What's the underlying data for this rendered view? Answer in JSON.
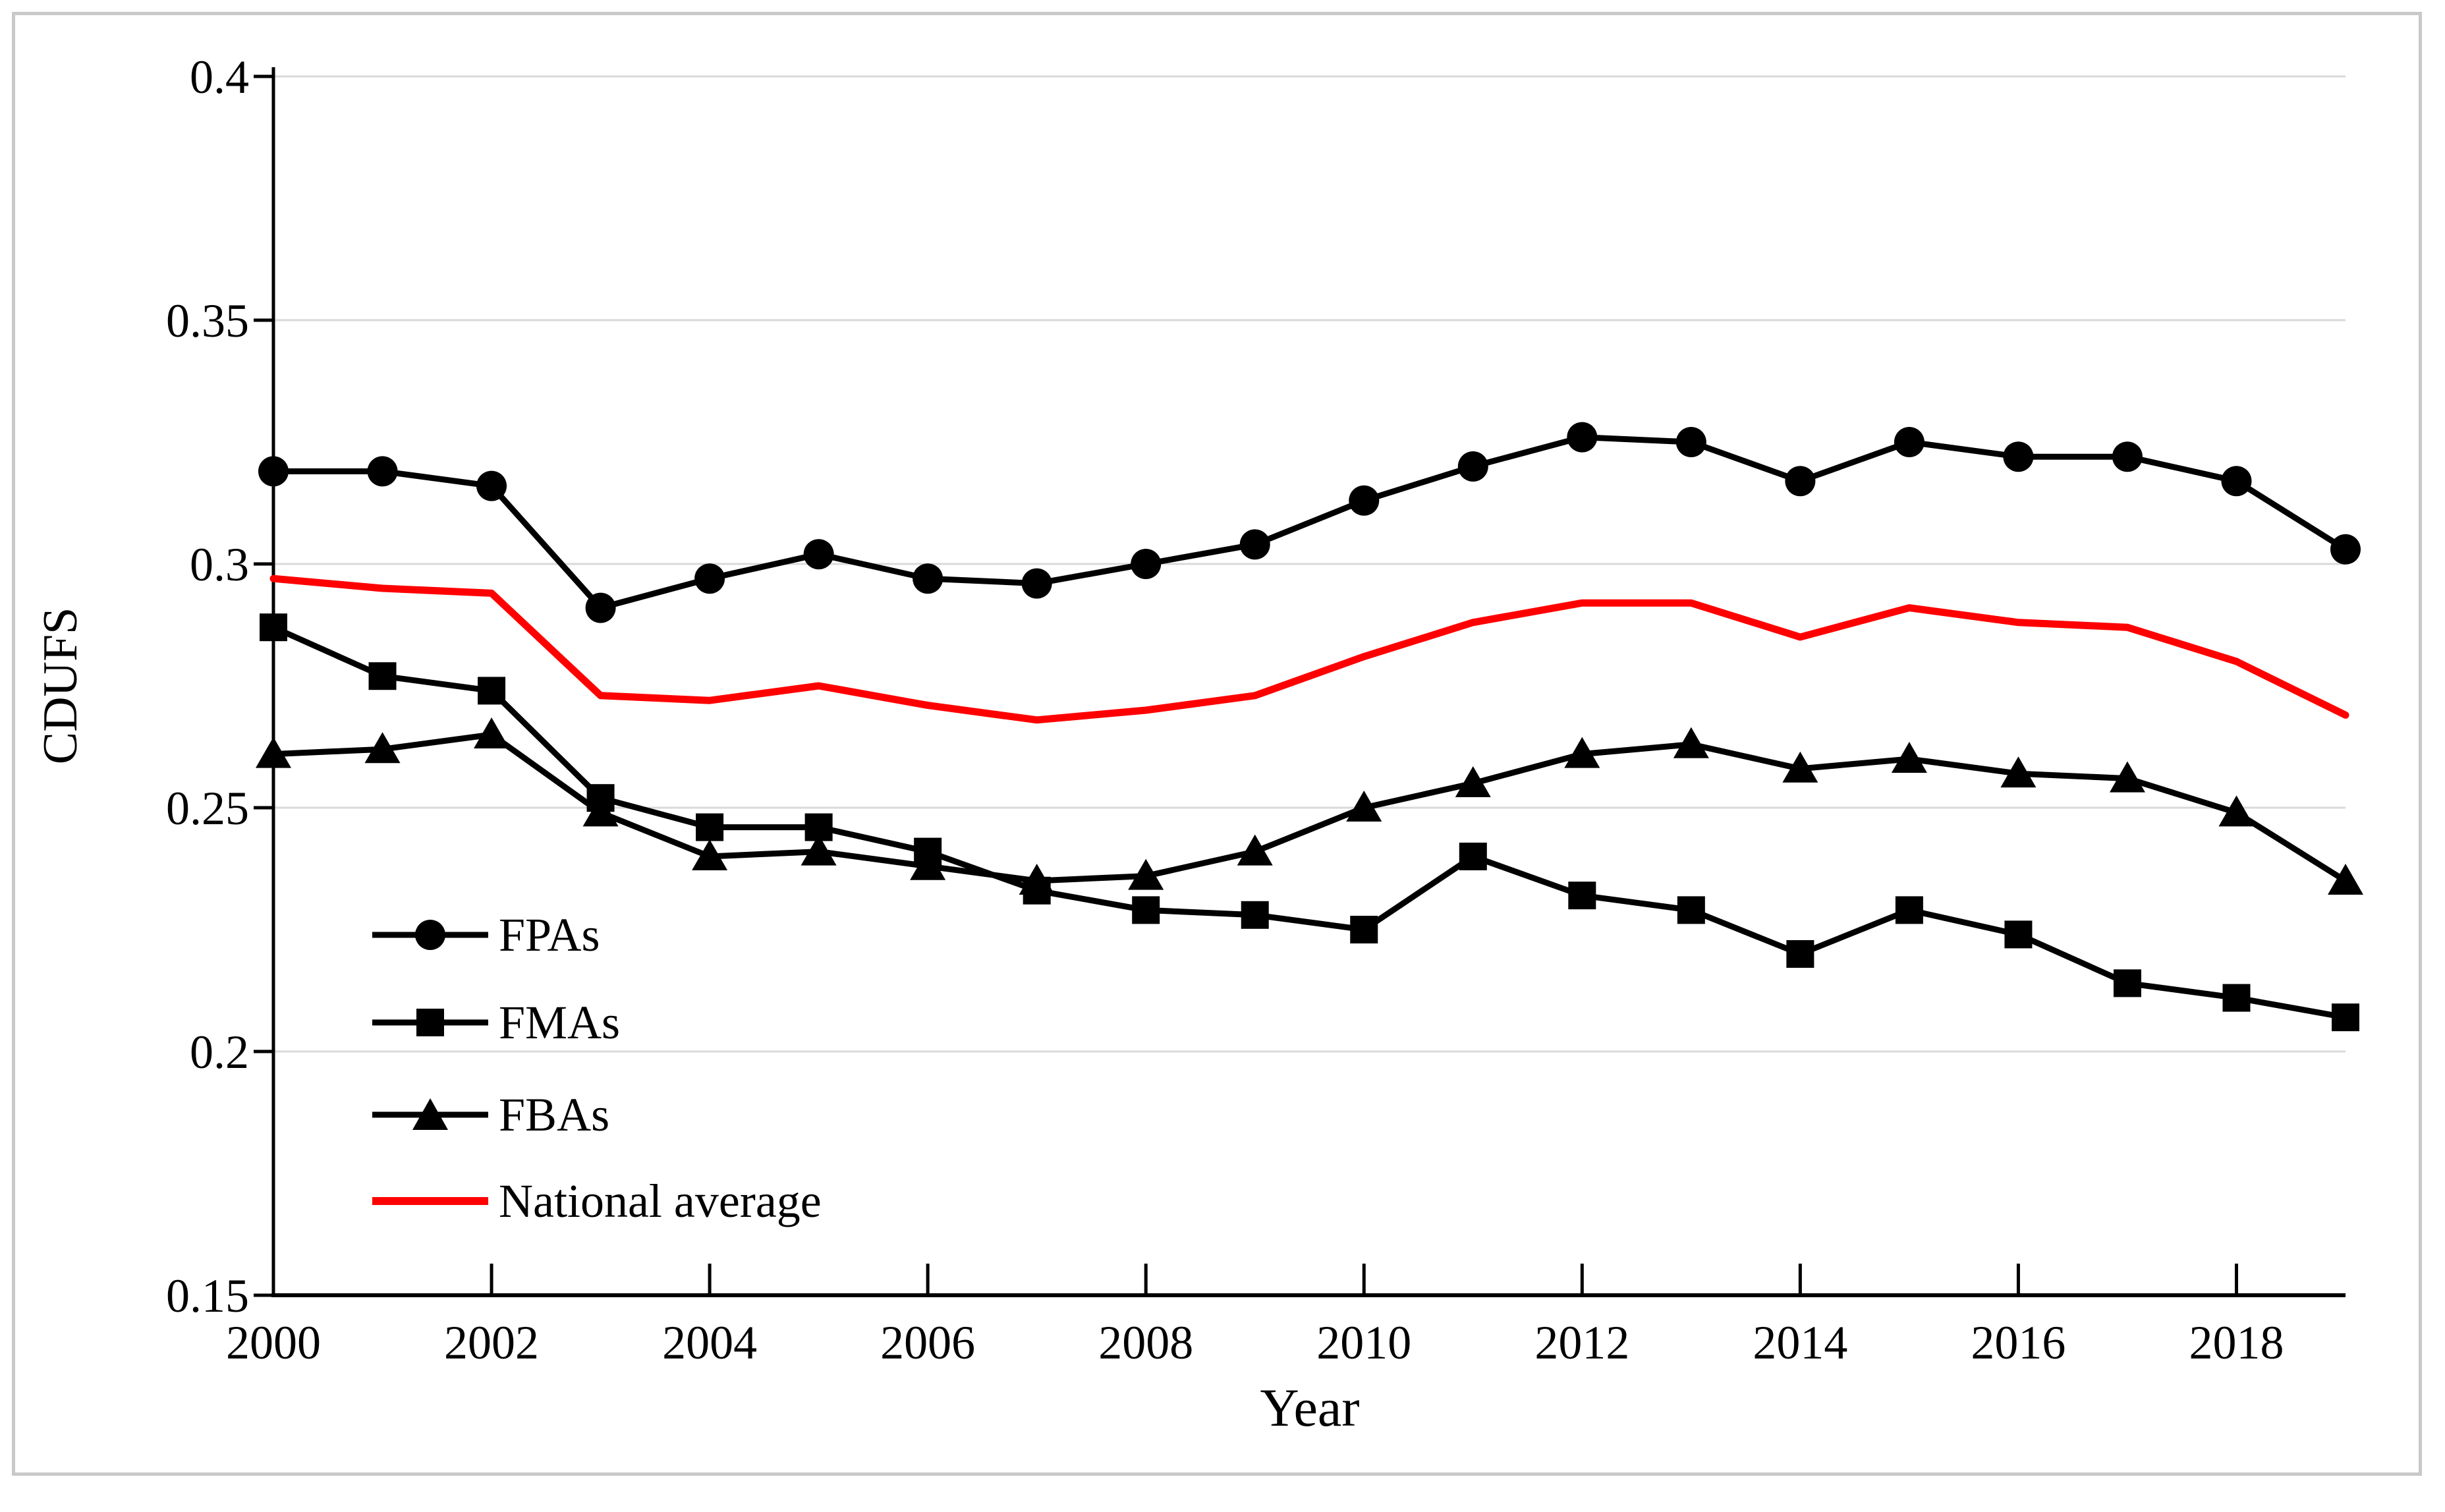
{
  "figure": {
    "background": "#ffffff",
    "border_color": "#c9c9c9",
    "grid_color": "#d9d9d9",
    "accent_red": "#ff0000"
  },
  "axes": {
    "y": {
      "label": "CDUFS",
      "tick_labels": [
        "0.4",
        "0.35",
        "0.3",
        "0.25",
        "0.2",
        "0.15"
      ],
      "min": 0.15,
      "max": 0.4,
      "step": 0.05
    },
    "x": {
      "label": "Year",
      "tick_labels": [
        "2000",
        "2002",
        "2004",
        "2006",
        "2008",
        "2010",
        "2012",
        "2014",
        "2016",
        "2018"
      ]
    }
  },
  "legend": {
    "items": [
      {
        "label": "FPAs",
        "marker": "circle",
        "color": "#000000"
      },
      {
        "label": "FMAs",
        "marker": "square",
        "color": "#000000"
      },
      {
        "label": "FBAs",
        "marker": "triangle",
        "color": "#000000"
      },
      {
        "label": "National average",
        "marker": "line",
        "color": "#ff0000"
      }
    ]
  },
  "chart_data": {
    "type": "line",
    "title": "",
    "xlabel": "Year",
    "ylabel": "CDUFS",
    "x": [
      2000,
      2001,
      2002,
      2003,
      2004,
      2005,
      2006,
      2007,
      2008,
      2009,
      2010,
      2011,
      2012,
      2013,
      2014,
      2015,
      2016,
      2017,
      2018,
      2019
    ],
    "ylim": [
      0.15,
      0.4
    ],
    "ytick_step": 0.05,
    "grid": "horizontal-only",
    "legend_position": "inside lower-left",
    "series": [
      {
        "name": "FPAs",
        "marker": "circle",
        "color": "#000000",
        "line_width": 9,
        "values": [
          0.319,
          0.319,
          0.316,
          0.291,
          0.297,
          0.302,
          0.297,
          0.296,
          0.3,
          0.304,
          0.313,
          0.32,
          0.326,
          0.325,
          0.317,
          0.325,
          0.322,
          0.322,
          0.317,
          0.303
        ]
      },
      {
        "name": "FMAs",
        "marker": "square",
        "color": "#000000",
        "line_width": 9,
        "values": [
          0.287,
          0.277,
          0.274,
          0.252,
          0.246,
          0.246,
          0.241,
          0.233,
          0.229,
          0.228,
          0.225,
          0.24,
          0.232,
          0.229,
          0.22,
          0.229,
          0.224,
          0.214,
          0.211,
          0.207
        ]
      },
      {
        "name": "FBAs",
        "marker": "triangle",
        "color": "#000000",
        "line_width": 9,
        "values": [
          0.261,
          0.262,
          0.265,
          0.249,
          0.24,
          0.241,
          0.238,
          0.235,
          0.236,
          0.241,
          0.25,
          0.255,
          0.261,
          0.263,
          0.258,
          0.26,
          0.257,
          0.256,
          0.249,
          0.235
        ]
      },
      {
        "name": "National average",
        "marker": "none",
        "color": "#ff0000",
        "line_width": 11,
        "values": [
          0.297,
          0.295,
          0.294,
          0.273,
          0.272,
          0.275,
          0.271,
          0.268,
          0.27,
          0.273,
          0.281,
          0.288,
          0.292,
          0.292,
          0.285,
          0.291,
          0.288,
          0.287,
          0.28,
          0.269
        ]
      }
    ]
  }
}
